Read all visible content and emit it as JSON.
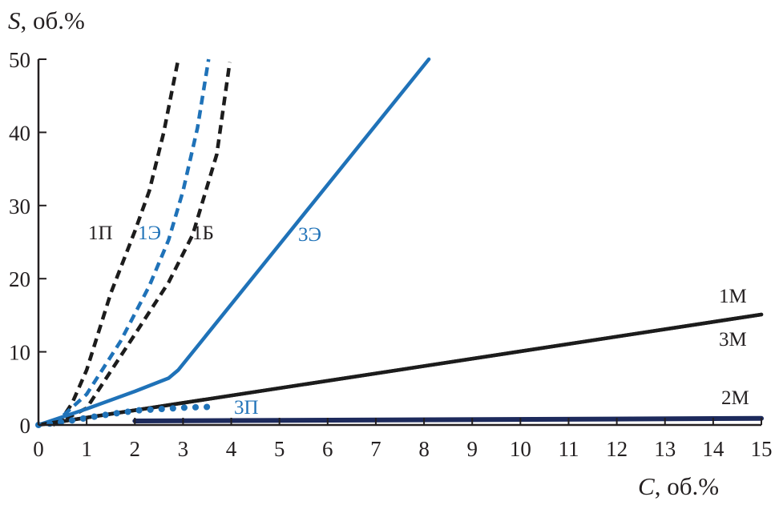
{
  "chart_data": {
    "type": "line",
    "title": "",
    "xlabel": {
      "var": "C",
      "unit": ", об.%"
    },
    "ylabel": {
      "var": "S",
      "unit": ", об.%"
    },
    "xlim": [
      0,
      15
    ],
    "ylim": [
      0,
      50
    ],
    "xticks": [
      "0",
      "1",
      "2",
      "3",
      "4",
      "5",
      "6",
      "7",
      "8",
      "9",
      "10",
      "11",
      "12",
      "13",
      "14",
      "15"
    ],
    "yticks": [
      "0",
      "10",
      "20",
      "30",
      "40",
      "50"
    ],
    "grid": false,
    "legend": "none (curves labelled inline)",
    "colors": {
      "black": "#1c1c1c",
      "blue": "#1f72b8",
      "navy": "#1d2a5c"
    },
    "series": [
      {
        "name": "1П",
        "color": "#1c1c1c",
        "style": "dashed",
        "x": [
          0.4,
          0.7,
          1.0,
          1.5,
          2.0,
          2.3,
          2.6,
          2.9
        ],
        "y": [
          0,
          3,
          7.5,
          18,
          26.5,
          32,
          40,
          50
        ]
      },
      {
        "name": "1Э",
        "color": "#1f72b8",
        "style": "dashed",
        "x": [
          0.3,
          1.0,
          1.7,
          2.3,
          2.7,
          3.0,
          3.3,
          3.53
        ],
        "y": [
          0,
          4.2,
          11.4,
          19,
          25.3,
          32,
          40.6,
          50
        ]
      },
      {
        "name": "1Б",
        "color": "#1c1c1c",
        "style": "dashed",
        "x": [
          0.3,
          1.0,
          2.08,
          2.7,
          3.2,
          3.7,
          3.97
        ],
        "y": [
          0,
          2.3,
          13.2,
          19.5,
          26,
          37,
          49.6
        ]
      },
      {
        "name": "3Э",
        "color": "#1f72b8",
        "style": "solid",
        "x": [
          0,
          1.0,
          2.0,
          2.7,
          2.9,
          5.2,
          8.1
        ],
        "y": [
          0,
          2.2,
          4.6,
          6.4,
          7.5,
          26.3,
          50
        ]
      },
      {
        "name": "1М",
        "color": "#1c1c1c",
        "style": "solid",
        "x": [
          0,
          15
        ],
        "y": [
          0,
          15.1
        ]
      },
      {
        "name": "3М",
        "color": "#1c1c1c",
        "style": "solid",
        "x": [
          0,
          15
        ],
        "y": [
          0,
          15.1
        ]
      },
      {
        "name": "2М",
        "color": "#1d2a5c",
        "style": "solid",
        "x": [
          2.0,
          15
        ],
        "y": [
          0.55,
          0.9
        ]
      },
      {
        "name": "3П",
        "color": "#1f72b8",
        "style": "dotted",
        "x": [
          0,
          0.5,
          1.03,
          1.5,
          2.08,
          2.6,
          3.1,
          3.7
        ],
        "y": [
          0,
          0.4,
          1.0,
          1.5,
          2.0,
          2.2,
          2.4,
          2.5
        ]
      }
    ]
  }
}
